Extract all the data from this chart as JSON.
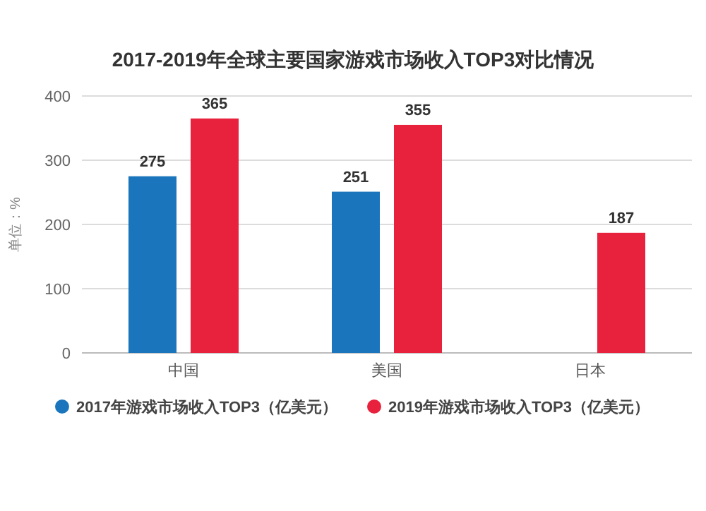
{
  "chart_data": {
    "type": "bar",
    "title": "2017-2019年全球主要国家游戏市场收入TOP3对比情况",
    "ylabel": "单位：%",
    "categories": [
      "中国",
      "美国",
      "日本"
    ],
    "series": [
      {
        "name": "2017年游戏市场收入TOP3（亿美元）",
        "color": "#1a75bc",
        "values": [
          275,
          251,
          null
        ],
        "value_labels": [
          "275",
          "251",
          null
        ]
      },
      {
        "name": "2019年游戏市场收入TOP3（亿美元）",
        "color": "#e8213d",
        "values": [
          365,
          355,
          187
        ],
        "value_labels": [
          "365",
          "355",
          "187"
        ]
      }
    ],
    "ylim": [
      0,
      400
    ],
    "yticks": [
      0,
      100,
      200,
      300,
      400
    ],
    "grid": "y",
    "legend": "bottom"
  }
}
